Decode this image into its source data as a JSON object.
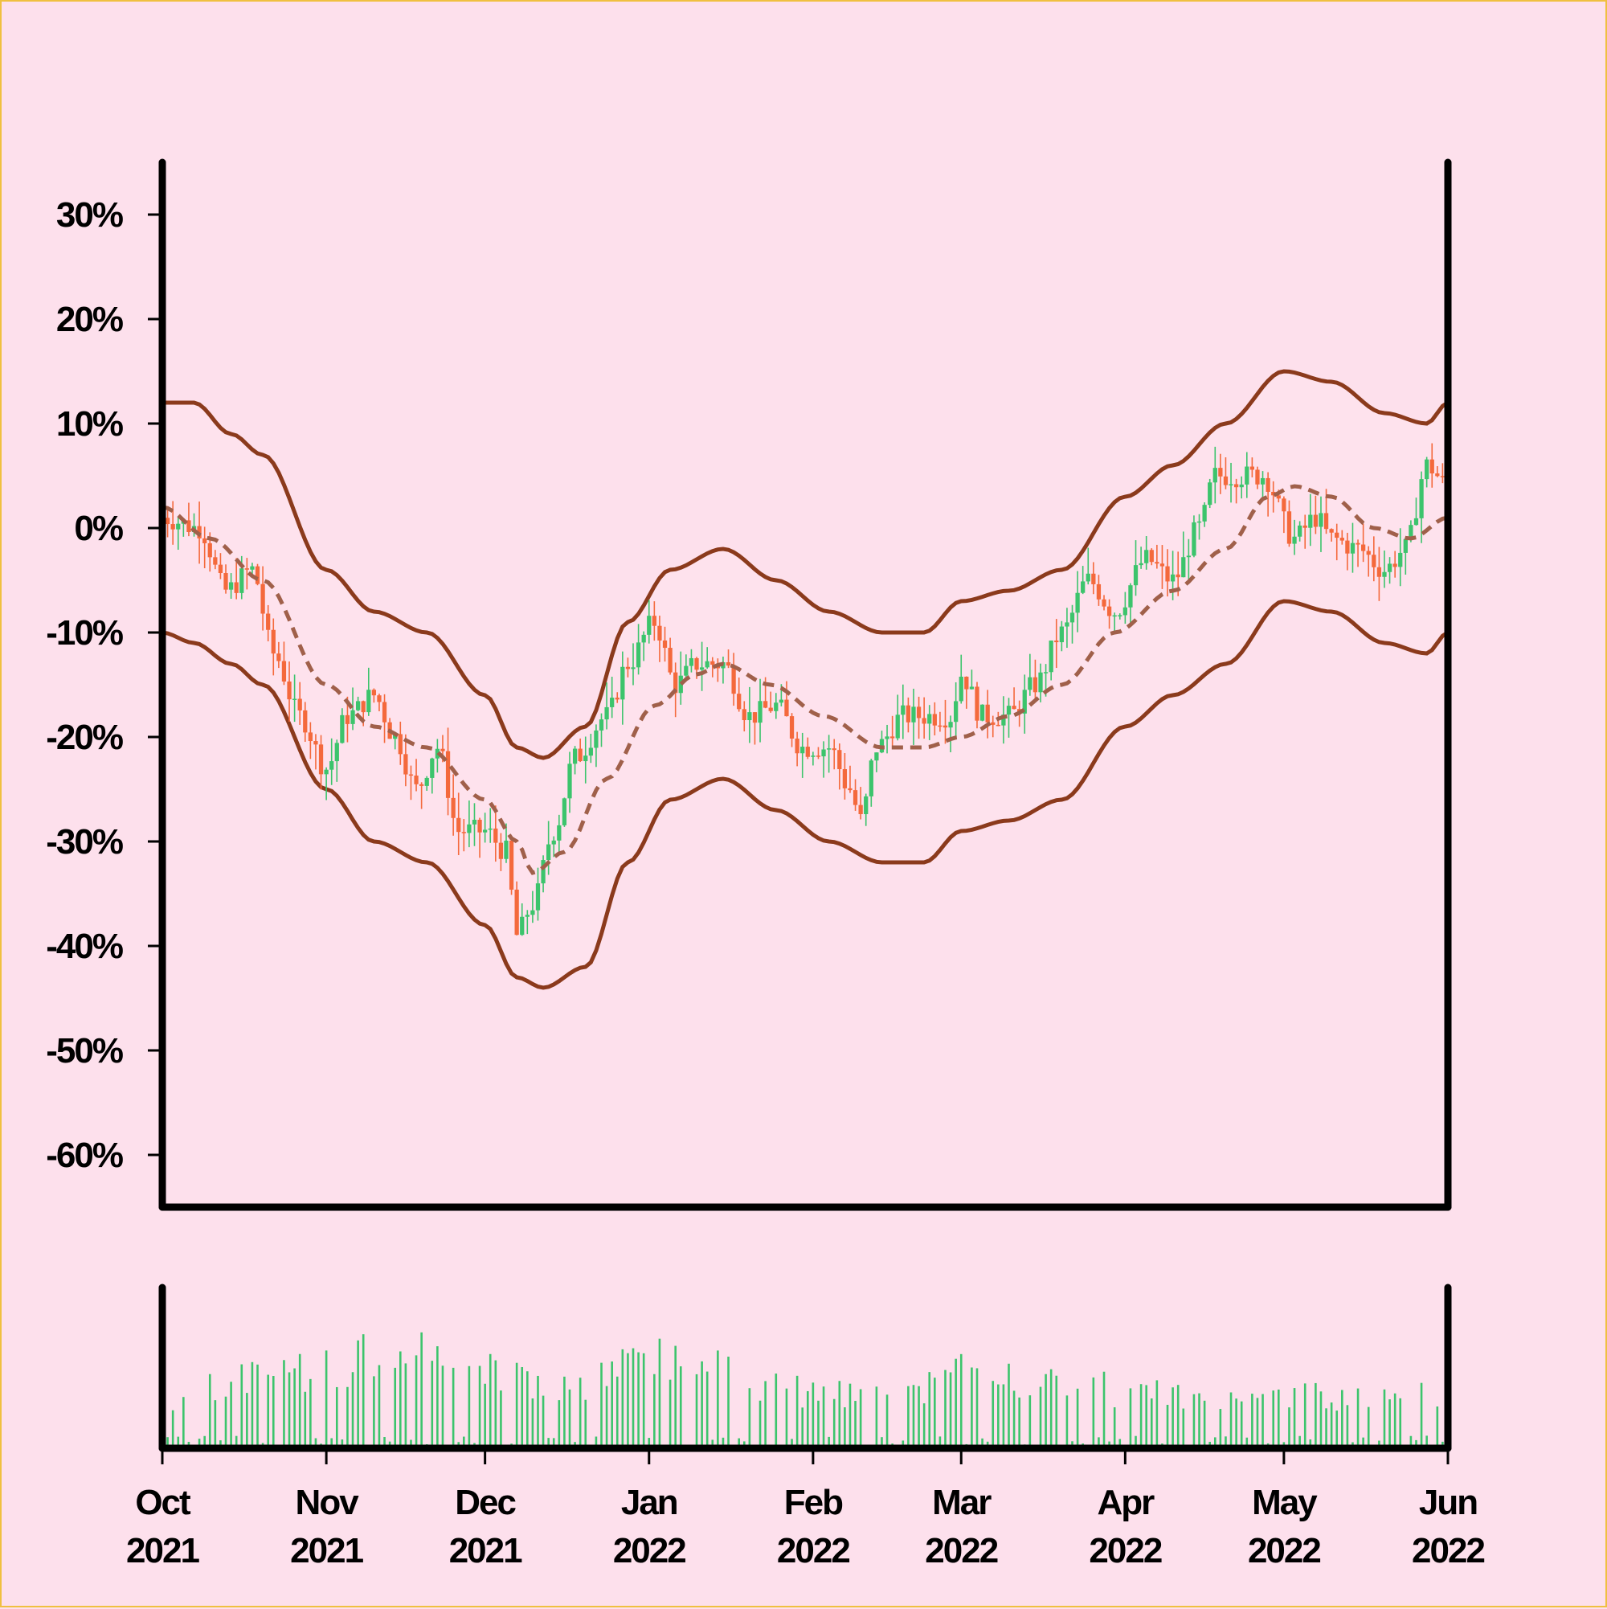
{
  "chart_data": {
    "type": "candlestick",
    "title": "",
    "xlabel": "",
    "ylabel": "",
    "ylim": [
      -65,
      35
    ],
    "y_ticks": [
      {
        "value": 30,
        "label": "30%"
      },
      {
        "value": 20,
        "label": "20%"
      },
      {
        "value": 10,
        "label": "10%"
      },
      {
        "value": 0,
        "label": "0%"
      },
      {
        "value": -10,
        "label": "-10%"
      },
      {
        "value": -20,
        "label": "-20%"
      },
      {
        "value": -30,
        "label": "-30%"
      },
      {
        "value": -40,
        "label": "-40%"
      },
      {
        "value": -50,
        "label": "-50%"
      },
      {
        "value": -60,
        "label": "-60%"
      }
    ],
    "x_ticks": [
      {
        "date": "2021-10-01",
        "month": "Oct",
        "year": "2021"
      },
      {
        "date": "2021-11-01",
        "month": "Nov",
        "year": "2021"
      },
      {
        "date": "2021-12-01",
        "month": "Dec",
        "year": "2021"
      },
      {
        "date": "2022-01-01",
        "month": "Jan",
        "year": "2022"
      },
      {
        "date": "2022-02-01",
        "month": "Feb",
        "year": "2022"
      },
      {
        "date": "2022-03-01",
        "month": "Mar",
        "year": "2022"
      },
      {
        "date": "2022-04-01",
        "month": "Apr",
        "year": "2022"
      },
      {
        "date": "2022-05-01",
        "month": "May",
        "year": "2022"
      },
      {
        "date": "2022-06-01",
        "month": "Jun",
        "year": "2022"
      }
    ],
    "x_range": [
      "2021-10-01",
      "2022-06-01"
    ],
    "close_path": [
      [
        "2021-10-01",
        1
      ],
      [
        "2021-10-08",
        0
      ],
      [
        "2021-10-13",
        -6
      ],
      [
        "2021-10-18",
        -4
      ],
      [
        "2021-10-22",
        -12
      ],
      [
        "2021-10-27",
        -18
      ],
      [
        "2021-11-01",
        -23
      ],
      [
        "2021-11-05",
        -18
      ],
      [
        "2021-11-10",
        -16
      ],
      [
        "2021-11-14",
        -20
      ],
      [
        "2021-11-18",
        -25
      ],
      [
        "2021-11-22",
        -21
      ],
      [
        "2021-11-26",
        -29
      ],
      [
        "2021-12-01",
        -29
      ],
      [
        "2021-12-05",
        -31
      ],
      [
        "2021-12-07",
        -39
      ],
      [
        "2021-12-10",
        -36
      ],
      [
        "2021-12-14",
        -29
      ],
      [
        "2021-12-18",
        -22
      ],
      [
        "2021-12-24",
        -18
      ],
      [
        "2021-12-28",
        -13
      ],
      [
        "2022-01-02",
        -9
      ],
      [
        "2022-01-06",
        -15
      ],
      [
        "2022-01-10",
        -13
      ],
      [
        "2022-01-15",
        -13
      ],
      [
        "2022-01-20",
        -18
      ],
      [
        "2022-01-25",
        -17
      ],
      [
        "2022-01-30",
        -21
      ],
      [
        "2022-02-04",
        -21
      ],
      [
        "2022-02-08",
        -25
      ],
      [
        "2022-02-10",
        -28
      ],
      [
        "2022-02-13",
        -21
      ],
      [
        "2022-02-18",
        -18
      ],
      [
        "2022-02-22",
        -18
      ],
      [
        "2022-02-27",
        -18
      ],
      [
        "2022-03-01",
        -14
      ],
      [
        "2022-03-05",
        -18
      ],
      [
        "2022-03-10",
        -18
      ],
      [
        "2022-03-15",
        -15
      ],
      [
        "2022-03-20",
        -10
      ],
      [
        "2022-03-25",
        -5
      ],
      [
        "2022-03-30",
        -8
      ],
      [
        "2022-04-05",
        -3
      ],
      [
        "2022-04-10",
        -5
      ],
      [
        "2022-04-15",
        0
      ],
      [
        "2022-04-18",
        5
      ],
      [
        "2022-04-22",
        5
      ],
      [
        "2022-04-27",
        5
      ],
      [
        "2022-05-03",
        -1
      ],
      [
        "2022-05-07",
        1
      ],
      [
        "2022-05-10",
        -1
      ],
      [
        "2022-05-15",
        -2
      ],
      [
        "2022-05-20",
        -4
      ],
      [
        "2022-05-24",
        -2
      ],
      [
        "2022-05-28",
        6
      ],
      [
        "2022-06-01",
        4
      ]
    ],
    "moving_average": [
      [
        "2021-10-01",
        2
      ],
      [
        "2021-10-10",
        -1
      ],
      [
        "2021-10-20",
        -5
      ],
      [
        "2021-11-01",
        -15
      ],
      [
        "2021-11-10",
        -19
      ],
      [
        "2021-11-20",
        -21
      ],
      [
        "2021-12-01",
        -26
      ],
      [
        "2021-12-07",
        -30
      ],
      [
        "2021-12-10",
        -33
      ],
      [
        "2021-12-16",
        -31
      ],
      [
        "2021-12-24",
        -24
      ],
      [
        "2022-01-02",
        -17
      ],
      [
        "2022-01-10",
        -14
      ],
      [
        "2022-01-15",
        -13
      ],
      [
        "2022-01-24",
        -15
      ],
      [
        "2022-02-03",
        -18
      ],
      [
        "2022-02-14",
        -21
      ],
      [
        "2022-02-22",
        -21
      ],
      [
        "2022-03-01",
        -20
      ],
      [
        "2022-03-10",
        -18
      ],
      [
        "2022-03-20",
        -15
      ],
      [
        "2022-03-30",
        -10
      ],
      [
        "2022-04-10",
        -6
      ],
      [
        "2022-04-20",
        -2
      ],
      [
        "2022-04-28",
        3
      ],
      [
        "2022-05-03",
        4
      ],
      [
        "2022-05-10",
        3
      ],
      [
        "2022-05-18",
        0
      ],
      [
        "2022-05-25",
        -1
      ],
      [
        "2022-06-01",
        1
      ]
    ],
    "upper_band": [
      [
        "2021-10-01",
        12
      ],
      [
        "2021-10-07",
        12
      ],
      [
        "2021-10-14",
        9
      ],
      [
        "2021-10-20",
        7
      ],
      [
        "2021-11-01",
        -4
      ],
      [
        "2021-11-10",
        -8
      ],
      [
        "2021-11-20",
        -10
      ],
      [
        "2021-12-01",
        -16
      ],
      [
        "2021-12-07",
        -21
      ],
      [
        "2021-12-12",
        -22
      ],
      [
        "2021-12-20",
        -19
      ],
      [
        "2021-12-28",
        -9
      ],
      [
        "2022-01-05",
        -4
      ],
      [
        "2022-01-15",
        -2
      ],
      [
        "2022-01-25",
        -5
      ],
      [
        "2022-02-04",
        -8
      ],
      [
        "2022-02-14",
        -10
      ],
      [
        "2022-02-22",
        -10
      ],
      [
        "2022-03-01",
        -7
      ],
      [
        "2022-03-10",
        -6
      ],
      [
        "2022-03-20",
        -4
      ],
      [
        "2022-04-01",
        3
      ],
      [
        "2022-04-10",
        6
      ],
      [
        "2022-04-20",
        10
      ],
      [
        "2022-05-01",
        15
      ],
      [
        "2022-05-10",
        14
      ],
      [
        "2022-05-20",
        11
      ],
      [
        "2022-05-28",
        10
      ],
      [
        "2022-06-01",
        12
      ]
    ],
    "lower_band": [
      [
        "2021-10-01",
        -10
      ],
      [
        "2021-10-07",
        -11
      ],
      [
        "2021-10-14",
        -13
      ],
      [
        "2021-10-20",
        -15
      ],
      [
        "2021-11-01",
        -25
      ],
      [
        "2021-11-10",
        -30
      ],
      [
        "2021-11-20",
        -32
      ],
      [
        "2021-12-01",
        -38
      ],
      [
        "2021-12-07",
        -43
      ],
      [
        "2021-12-12",
        -44
      ],
      [
        "2021-12-20",
        -42
      ],
      [
        "2021-12-28",
        -32
      ],
      [
        "2022-01-05",
        -26
      ],
      [
        "2022-01-15",
        -24
      ],
      [
        "2022-01-25",
        -27
      ],
      [
        "2022-02-04",
        -30
      ],
      [
        "2022-02-14",
        -32
      ],
      [
        "2022-02-22",
        -32
      ],
      [
        "2022-03-01",
        -29
      ],
      [
        "2022-03-10",
        -28
      ],
      [
        "2022-03-20",
        -26
      ],
      [
        "2022-04-01",
        -19
      ],
      [
        "2022-04-10",
        -16
      ],
      [
        "2022-04-20",
        -13
      ],
      [
        "2022-05-01",
        -7
      ],
      [
        "2022-05-10",
        -8
      ],
      [
        "2022-05-20",
        -11
      ],
      [
        "2022-05-28",
        -12
      ],
      [
        "2022-06-01",
        -10
      ]
    ],
    "volume_shape": [
      0.45,
      0.6,
      0.75,
      0.9,
      0.7,
      0.55,
      0.8,
      0.7,
      0.5,
      0.45,
      0.7,
      0.6,
      0.55,
      0.4,
      0.5,
      0.45,
      0.55
    ],
    "colors": {
      "background": "#fde0ec",
      "up": "#3cc46c",
      "down": "#f4693c",
      "band": "#8b3a1c",
      "moving_average": "#a0604a",
      "axis": "#000000",
      "border": "#f0c040"
    },
    "grid": false,
    "legend": "none"
  }
}
